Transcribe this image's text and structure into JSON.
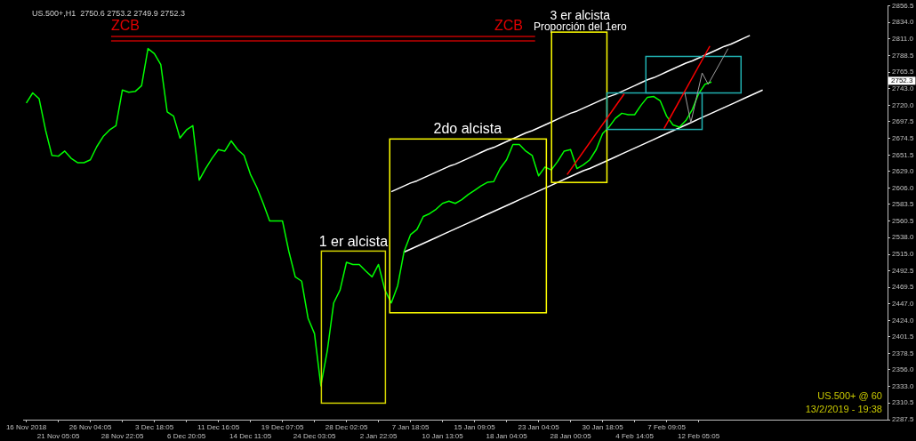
{
  "chart_data": {
    "type": "line",
    "title": "US.500+,H1  2750.6 2753.2 2749.9 2752.3",
    "categories": [
      "16 Nov 2018",
      null,
      null,
      null,
      null,
      "21 Nov 05:05",
      null,
      null,
      null,
      null,
      "26 Nov 04:05",
      null,
      null,
      null,
      null,
      "28 Nov 22:05",
      null,
      null,
      null,
      null,
      "3 Dec 18:05",
      null,
      null,
      null,
      null,
      "6 Dec 20:05",
      null,
      null,
      null,
      null,
      "11 Dec 16:05",
      null,
      null,
      null,
      null,
      "14 Dec 11:05",
      null,
      null,
      null,
      null,
      "19 Dec 07:05",
      null,
      null,
      null,
      null,
      "24 Dec 03:05",
      null,
      null,
      null,
      null,
      "28 Dec 02:05",
      null,
      null,
      null,
      null,
      "2 Jan 22:05",
      null,
      null,
      null,
      null,
      "7 Jan 18:05",
      null,
      null,
      null,
      null,
      "10 Jan 13:05",
      null,
      null,
      null,
      null,
      "15 Jan 09:05",
      null,
      null,
      null,
      null,
      "18 Jan 04:05",
      null,
      null,
      null,
      null,
      "23 Jan 04:05",
      null,
      null,
      null,
      null,
      "28 Jan 00:05",
      null,
      null,
      null,
      null,
      "30 Jan 18:05",
      null,
      null,
      null,
      null,
      "4 Feb 14:05",
      null,
      null,
      null,
      null,
      "7 Feb 09:05",
      null,
      null,
      null,
      null,
      "12 Feb 05:05",
      null,
      null,
      null,
      null,
      null,
      null,
      null,
      null,
      null,
      null,
      null,
      null,
      null,
      null,
      null,
      null,
      null,
      null,
      null,
      null,
      null,
      null,
      null,
      null,
      null,
      null,
      null,
      null,
      null
    ],
    "series": [
      {
        "color": "#00ff00",
        "values": [
          2723,
          2737,
          2729,
          2686,
          2651,
          2650,
          2657,
          2647,
          2641,
          2641,
          2645,
          2663,
          2677,
          2686,
          2692,
          2741,
          2738,
          2739,
          2747,
          2798,
          2791,
          2776,
          2711,
          2705,
          2675,
          2686,
          2692,
          2617,
          2633,
          2647,
          2659,
          2657,
          2671,
          2659,
          2651,
          2625,
          2607,
          2585,
          2561,
          2561,
          2561,
          2519,
          2484,
          2478,
          2427,
          2406,
          2334,
          2382,
          2448,
          2466,
          2504,
          2501,
          2501,
          2492,
          2484,
          2501,
          2466,
          2448,
          2472,
          2519,
          2542,
          2549,
          2567,
          2571,
          2577,
          2585,
          2588,
          2585,
          2590,
          2597,
          2603,
          2609,
          2614,
          2615,
          2633,
          2645,
          2666,
          2666,
          2657,
          2651,
          2623,
          2635,
          2631,
          2643,
          2657,
          2659,
          2633,
          2638,
          2645,
          2659,
          2681,
          2690,
          2702,
          2709,
          2707,
          2707,
          2720,
          2731,
          2732,
          2726,
          2705,
          2693,
          2690,
          2699,
          2714,
          2736,
          2749,
          2752,
          null,
          null,
          null,
          null,
          null,
          null,
          null,
          null,
          null,
          null,
          null,
          null,
          null,
          null,
          null,
          null,
          null,
          null,
          null,
          null,
          null,
          null,
          null,
          null,
          null,
          null,
          null
        ]
      },
      {
        "color": "#ffffff",
        "values": [
          null,
          null,
          null,
          null,
          null,
          null,
          null,
          null,
          null,
          null,
          null,
          null,
          null,
          null,
          null,
          null,
          null,
          null,
          null,
          null,
          null,
          null,
          null,
          null,
          null,
          null,
          null,
          null,
          null,
          null,
          null,
          null,
          null,
          null,
          null,
          null,
          null,
          null,
          null,
          null,
          null,
          null,
          null,
          null,
          null,
          null,
          null,
          null,
          null,
          null,
          null,
          null,
          null,
          null,
          null,
          null,
          null,
          2601,
          2605,
          2609,
          2613,
          2616,
          2620,
          2624,
          2628,
          2632,
          2636,
          2639,
          2643,
          2647,
          2651,
          2655,
          2659,
          2662,
          2666,
          2670,
          2674,
          2678,
          2682,
          2685,
          2689,
          2693,
          2697,
          2701,
          2705,
          2709,
          2712,
          2716,
          2720,
          2724,
          2728,
          2732,
          2735,
          2739,
          2743,
          2747,
          2751,
          2755,
          2758,
          2762,
          2766,
          2770,
          2774,
          2778,
          2781,
          2785,
          2789,
          2793,
          2797,
          2801,
          2804,
          2808,
          2812,
          2816,
          null,
          null,
          null,
          null,
          null,
          null,
          null,
          null,
          null,
          null,
          null,
          null,
          null,
          null,
          null,
          null,
          null,
          null,
          null,
          null,
          null
        ]
      },
      {
        "color": "#ffffff",
        "values": [
          null,
          null,
          null,
          null,
          null,
          null,
          null,
          null,
          null,
          null,
          null,
          null,
          null,
          null,
          null,
          null,
          null,
          null,
          null,
          null,
          null,
          null,
          null,
          null,
          null,
          null,
          null,
          null,
          null,
          null,
          null,
          null,
          null,
          null,
          null,
          null,
          null,
          null,
          null,
          null,
          null,
          null,
          null,
          null,
          null,
          null,
          null,
          null,
          null,
          null,
          null,
          null,
          null,
          null,
          null,
          null,
          null,
          null,
          null,
          2518,
          2522,
          2526,
          2530,
          2534,
          2538,
          2542,
          2546,
          2550,
          2554,
          2558,
          2562,
          2566,
          2570,
          2574,
          2578,
          2582,
          2586,
          2590,
          2594,
          2598,
          2602,
          2606,
          2610,
          2614,
          2618,
          2622,
          2626,
          2630,
          2633,
          2637,
          2641,
          2645,
          2649,
          2653,
          2657,
          2661,
          2665,
          2669,
          2673,
          2677,
          2681,
          2685,
          2689,
          2693,
          2697,
          2701,
          2705,
          2709,
          2713,
          2717,
          2721,
          2725,
          2729,
          2733,
          2737,
          2741,
          null,
          null,
          null,
          null,
          null,
          null,
          null,
          null,
          null,
          null,
          null,
          null,
          null,
          null,
          null,
          null,
          null,
          null,
          null
        ]
      }
    ],
    "ylim": [
      2287.5,
      2856.5
    ],
    "yticks": [
      {
        "value": 2287.5,
        "label": "2287.5"
      },
      {
        "value": 2310.5,
        "label": "2310.5"
      },
      {
        "value": 2333,
        "label": "2333.0"
      },
      {
        "value": 2356,
        "label": "2356.0"
      },
      {
        "value": 2378.5,
        "label": "2378.5"
      },
      {
        "value": 2401.5,
        "label": "2401.5"
      },
      {
        "value": 2424,
        "label": "2424.0"
      },
      {
        "value": 2447,
        "label": "2447.0"
      },
      {
        "value": 2469.5,
        "label": "2469.5"
      },
      {
        "value": 2492.5,
        "label": "2492.5"
      },
      {
        "value": 2515,
        "label": "2515.0"
      },
      {
        "value": 2538,
        "label": "2538.0"
      },
      {
        "value": 2560.5,
        "label": "2560.5"
      },
      {
        "value": 2583.5,
        "label": "2583.5"
      },
      {
        "value": 2606,
        "label": "2606.0"
      },
      {
        "value": 2629,
        "label": "2629.0"
      },
      {
        "value": 2651.5,
        "label": "2651.5"
      },
      {
        "value": 2674.5,
        "label": "2674.5"
      },
      {
        "value": 2697.5,
        "label": "2697.5"
      },
      {
        "value": 2720,
        "label": "2720.0"
      },
      {
        "value": 2743,
        "label": "2743.0"
      },
      {
        "value": 2765.5,
        "label": "2765.5"
      },
      {
        "value": 2788.5,
        "label": "2788.5"
      },
      {
        "value": 2811,
        "label": "2811.0"
      },
      {
        "value": 2834,
        "label": "2834.0"
      },
      {
        "value": 2856.5,
        "label": "2856.5"
      }
    ],
    "annotations": [
      "ZCB",
      "ZCB",
      "1 er alcista",
      "2do alcista",
      "3 er alcista",
      "Proporción del 1ero",
      "2752.3",
      "US.500+ @ 60",
      "13/2/2019 - 19:38"
    ]
  }
}
